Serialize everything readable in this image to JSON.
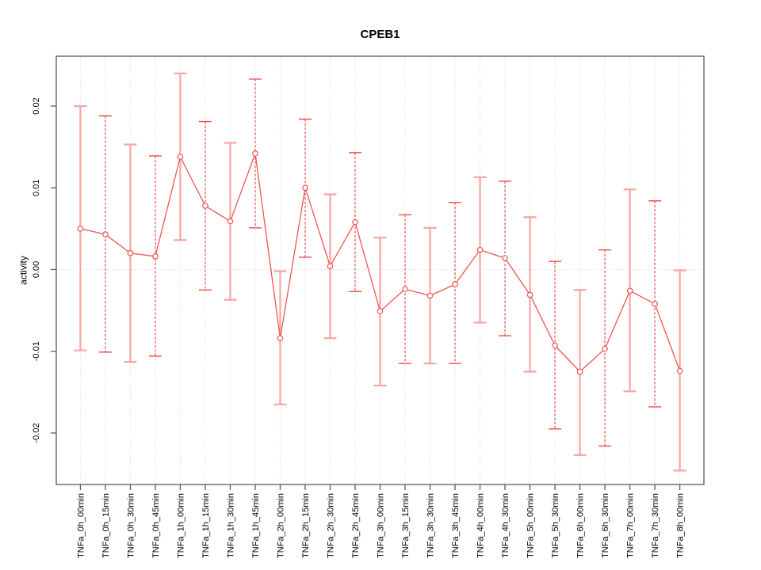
{
  "figure": {
    "title": "CPEB1",
    "y_axis_title": "activity"
  },
  "chart_data": {
    "type": "line",
    "title": "CPEB1",
    "xlabel": "",
    "ylabel": "activity",
    "ylim": [
      -0.0263,
      0.0261
    ],
    "ytick_values": [
      0.02,
      0.01,
      0.0,
      -0.01,
      -0.02
    ],
    "ytick_labels": [
      "0.02",
      "0.01",
      "0.00",
      "-0.01",
      "-0.02"
    ],
    "x_tick_rotation": 90,
    "grid": "dotted vertical gridline at each category; dotted horizontal line at y=0; full box frame; no legend",
    "categories": [
      "TNFa_0h_00min",
      "TNFa_0h_15min",
      "TNFa_0h_30min",
      "TNFa_0h_45min",
      "TNFa_1h_00min",
      "TNFa_1h_15min",
      "TNFa_1h_30min",
      "TNFa_1h_45min",
      "TNFa_2h_00min",
      "TNFa_2h_15min",
      "TNFa_2h_30min",
      "TNFa_2h_45min",
      "TNFa_3h_00min",
      "TNFa_3h_15min",
      "TNFa_3h_30min",
      "TNFa_3h_45min",
      "TNFa_4h_00min",
      "TNFa_4h_30min",
      "TNFa_5h_00min",
      "TNFa_5h_30min",
      "TNFa_6h_00min",
      "TNFa_6h_30min",
      "TNFa_7h_00min",
      "TNFa_7h_30min",
      "TNFa_8h_00min"
    ],
    "series": [
      {
        "name": "CPEB1 activity",
        "marker": "open-circle",
        "values": [
          0.005,
          0.0043,
          0.002,
          0.0016,
          0.0138,
          0.0078,
          0.0059,
          0.0142,
          -0.0084,
          0.01,
          0.0004,
          0.0058,
          -0.0051,
          -0.0024,
          -0.0032,
          -0.0018,
          0.0024,
          0.0014,
          -0.0031,
          -0.0093,
          -0.0125,
          -0.0097,
          -0.0026,
          -0.0042,
          -0.0124
        ],
        "error_upper": [
          0.02,
          0.0188,
          0.0153,
          0.0139,
          0.024,
          0.0181,
          0.0155,
          0.0233,
          -0.0002,
          0.0184,
          0.0092,
          0.0143,
          0.0039,
          0.0067,
          0.0051,
          0.0082,
          0.0113,
          0.0108,
          0.0064,
          0.001,
          -0.0025,
          0.0024,
          0.0098,
          0.0084,
          -0.0001
        ],
        "error_lower": [
          -0.0099,
          -0.0101,
          -0.0113,
          -0.0106,
          0.0036,
          -0.0025,
          -0.0037,
          0.0051,
          -0.0165,
          0.0015,
          -0.0084,
          -0.0027,
          -0.0142,
          -0.0115,
          -0.0115,
          -0.0115,
          -0.0065,
          -0.0081,
          -0.0125,
          -0.0195,
          -0.0227,
          -0.0216,
          -0.0149,
          -0.0168,
          -0.0246
        ]
      }
    ],
    "error_bar_style_pattern": [
      "solid-light",
      "dashed"
    ],
    "colors": {
      "line_red": "#ef5552",
      "marker_red": "#ef5552",
      "bar_pink": "#f7a4a2",
      "bar_dashed_red": "#ee4c49",
      "grid": "#dcdcdc",
      "zero_line": "#dedede",
      "axis_frame": "#5a5a5a",
      "text": "#000000",
      "background": "#ffffff"
    }
  }
}
